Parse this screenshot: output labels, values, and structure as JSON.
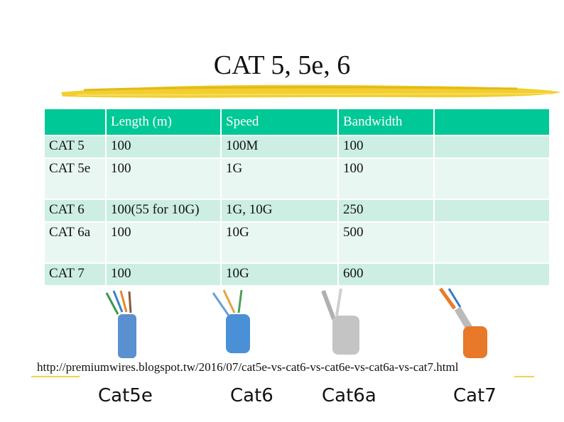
{
  "slide": {
    "title": "CAT 5, 5e, 6",
    "source_url": "http://premiumwires.blogspot.tw/2016/07/cat5e-vs-cat6-vs-cat6e-vs-cat6a-vs-cat7.html"
  },
  "table": {
    "headers": [
      "",
      "Length (m)",
      "Speed",
      "Bandwidth",
      ""
    ],
    "rows": [
      [
        "CAT 5",
        "100",
        "100M",
        "100",
        ""
      ],
      [
        "CAT 5e",
        "100",
        "1G",
        "100",
        ""
      ],
      [
        "CAT 6",
        "100(55 for 10G)",
        "1G, 10G",
        "250",
        ""
      ],
      [
        "CAT 6a",
        "100",
        "10G",
        "500",
        ""
      ],
      [
        "CAT 7",
        "100",
        "10G",
        "600",
        ""
      ]
    ]
  },
  "cable_labels": [
    "Cat5e",
    "Cat6",
    "Cat6a",
    "Cat7"
  ],
  "colors": {
    "header": "#00c896",
    "row_odd": "#cdeee3",
    "row_even": "#e9f7f2",
    "brush": "#f2cf2e"
  }
}
